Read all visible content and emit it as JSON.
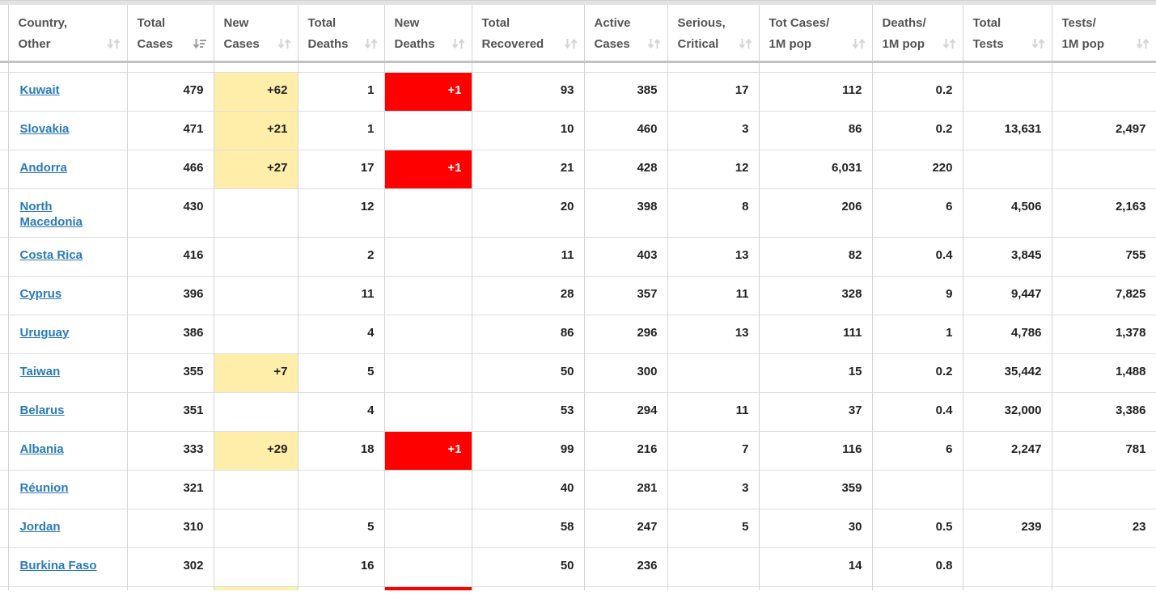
{
  "table": {
    "columns": [
      {
        "key": "country",
        "line1": "Country,",
        "line2": "Other",
        "sort": "unsorted"
      },
      {
        "key": "total_cases",
        "line1": "Total",
        "line2": "Cases",
        "sort": "desc"
      },
      {
        "key": "new_cases",
        "line1": "New",
        "line2": "Cases",
        "sort": "unsorted"
      },
      {
        "key": "total_deaths",
        "line1": "Total",
        "line2": "Deaths",
        "sort": "unsorted"
      },
      {
        "key": "new_deaths",
        "line1": "New",
        "line2": "Deaths",
        "sort": "unsorted"
      },
      {
        "key": "total_recovered",
        "line1": "Total",
        "line2": "Recovered",
        "sort": "unsorted"
      },
      {
        "key": "active_cases",
        "line1": "Active",
        "line2": "Cases",
        "sort": "unsorted"
      },
      {
        "key": "serious_critical",
        "line1": "Serious,",
        "line2": "Critical",
        "sort": "unsorted"
      },
      {
        "key": "tot_cases_1m",
        "line1": "Tot Cases/",
        "line2": "1M pop",
        "sort": "unsorted"
      },
      {
        "key": "deaths_1m",
        "line1": "Deaths/",
        "line2": "1M pop",
        "sort": "unsorted"
      },
      {
        "key": "total_tests",
        "line1": "Total",
        "line2": "Tests",
        "sort": "unsorted"
      },
      {
        "key": "tests_1m",
        "line1": "Tests/",
        "line2": "1M pop",
        "sort": "unsorted"
      }
    ],
    "rows": [
      {
        "country": "Kuwait",
        "total_cases": "479",
        "new_cases": "+62",
        "total_deaths": "1",
        "new_deaths": "+1",
        "total_recovered": "93",
        "active_cases": "385",
        "serious_critical": "17",
        "tot_cases_1m": "112",
        "deaths_1m": "0.2",
        "total_tests": "",
        "tests_1m": ""
      },
      {
        "country": "Slovakia",
        "total_cases": "471",
        "new_cases": "+21",
        "total_deaths": "1",
        "new_deaths": "",
        "total_recovered": "10",
        "active_cases": "460",
        "serious_critical": "3",
        "tot_cases_1m": "86",
        "deaths_1m": "0.2",
        "total_tests": "13,631",
        "tests_1m": "2,497"
      },
      {
        "country": "Andorra",
        "total_cases": "466",
        "new_cases": "+27",
        "total_deaths": "17",
        "new_deaths": "+1",
        "total_recovered": "21",
        "active_cases": "428",
        "serious_critical": "12",
        "tot_cases_1m": "6,031",
        "deaths_1m": "220",
        "total_tests": "",
        "tests_1m": ""
      },
      {
        "country": "North Macedonia",
        "total_cases": "430",
        "new_cases": "",
        "total_deaths": "12",
        "new_deaths": "",
        "total_recovered": "20",
        "active_cases": "398",
        "serious_critical": "8",
        "tot_cases_1m": "206",
        "deaths_1m": "6",
        "total_tests": "4,506",
        "tests_1m": "2,163"
      },
      {
        "country": "Costa Rica",
        "total_cases": "416",
        "new_cases": "",
        "total_deaths": "2",
        "new_deaths": "",
        "total_recovered": "11",
        "active_cases": "403",
        "serious_critical": "13",
        "tot_cases_1m": "82",
        "deaths_1m": "0.4",
        "total_tests": "3,845",
        "tests_1m": "755"
      },
      {
        "country": "Cyprus",
        "total_cases": "396",
        "new_cases": "",
        "total_deaths": "11",
        "new_deaths": "",
        "total_recovered": "28",
        "active_cases": "357",
        "serious_critical": "11",
        "tot_cases_1m": "328",
        "deaths_1m": "9",
        "total_tests": "9,447",
        "tests_1m": "7,825"
      },
      {
        "country": "Uruguay",
        "total_cases": "386",
        "new_cases": "",
        "total_deaths": "4",
        "new_deaths": "",
        "total_recovered": "86",
        "active_cases": "296",
        "serious_critical": "13",
        "tot_cases_1m": "111",
        "deaths_1m": "1",
        "total_tests": "4,786",
        "tests_1m": "1,378"
      },
      {
        "country": "Taiwan",
        "total_cases": "355",
        "new_cases": "+7",
        "total_deaths": "5",
        "new_deaths": "",
        "total_recovered": "50",
        "active_cases": "300",
        "serious_critical": "",
        "tot_cases_1m": "15",
        "deaths_1m": "0.2",
        "total_tests": "35,442",
        "tests_1m": "1,488"
      },
      {
        "country": "Belarus",
        "total_cases": "351",
        "new_cases": "",
        "total_deaths": "4",
        "new_deaths": "",
        "total_recovered": "53",
        "active_cases": "294",
        "serious_critical": "11",
        "tot_cases_1m": "37",
        "deaths_1m": "0.4",
        "total_tests": "32,000",
        "tests_1m": "3,386"
      },
      {
        "country": "Albania",
        "total_cases": "333",
        "new_cases": "+29",
        "total_deaths": "18",
        "new_deaths": "+1",
        "total_recovered": "99",
        "active_cases": "216",
        "serious_critical": "7",
        "tot_cases_1m": "116",
        "deaths_1m": "6",
        "total_tests": "2,247",
        "tests_1m": "781"
      },
      {
        "country": "Réunion",
        "total_cases": "321",
        "new_cases": "",
        "total_deaths": "",
        "new_deaths": "",
        "total_recovered": "40",
        "active_cases": "281",
        "serious_critical": "3",
        "tot_cases_1m": "359",
        "deaths_1m": "",
        "total_tests": "",
        "tests_1m": ""
      },
      {
        "country": "Jordan",
        "total_cases": "310",
        "new_cases": "",
        "total_deaths": "5",
        "new_deaths": "",
        "total_recovered": "58",
        "active_cases": "247",
        "serious_critical": "5",
        "tot_cases_1m": "30",
        "deaths_1m": "0.5",
        "total_tests": "239",
        "tests_1m": "23"
      },
      {
        "country": "Burkina Faso",
        "total_cases": "302",
        "new_cases": "",
        "total_deaths": "16",
        "new_deaths": "",
        "total_recovered": "50",
        "active_cases": "236",
        "serious_critical": "",
        "tot_cases_1m": "14",
        "deaths_1m": "0.8",
        "total_tests": "",
        "tests_1m": ""
      }
    ],
    "partial_next_row": {
      "new_cases_highlight": true,
      "new_deaths_highlight": true
    }
  },
  "colors": {
    "new_cases_highlight": "#FFEEAA",
    "new_deaths_highlight": "#FF0000",
    "new_deaths_text": "#FFFFFF",
    "link": "#2A7AB9",
    "header_text": "#545454",
    "cell_text": "#1F2021"
  }
}
